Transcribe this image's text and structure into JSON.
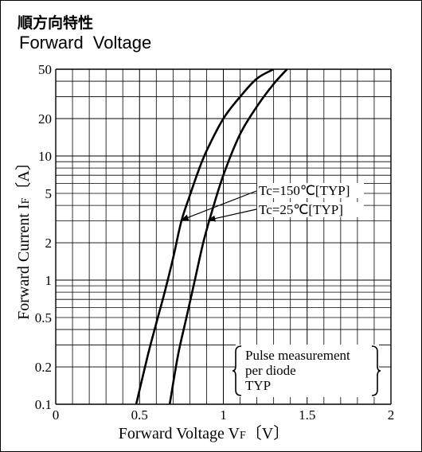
{
  "header": {
    "title_jp": "順方向特性",
    "title_en": "Forward  Voltage"
  },
  "chart_data": {
    "type": "line",
    "title": "Forward  Voltage",
    "xlabel": "Forward Voltage V",
    "xlabel_sub": "F",
    "xlabel_unit": "〔V〕",
    "ylabel": "Forward Current I",
    "ylabel_sub": "F",
    "ylabel_unit": "〔A〕",
    "xlim": [
      0,
      2
    ],
    "ylim": [
      0.1,
      50
    ],
    "yscale": "log",
    "grid": true,
    "x_ticks": [
      {
        "value": 0,
        "label": "0"
      },
      {
        "value": 0.5,
        "label": "0.5"
      },
      {
        "value": 1,
        "label": "1"
      },
      {
        "value": 1.5,
        "label": "1.5"
      },
      {
        "value": 2,
        "label": "2"
      }
    ],
    "y_ticks": [
      {
        "value": 0.1,
        "label": "0.1"
      },
      {
        "value": 0.2,
        "label": "0.2"
      },
      {
        "value": 0.5,
        "label": "0.5"
      },
      {
        "value": 1,
        "label": "1"
      },
      {
        "value": 2,
        "label": "2"
      },
      {
        "value": 5,
        "label": "5"
      },
      {
        "value": 10,
        "label": "10"
      },
      {
        "value": 20,
        "label": "20"
      },
      {
        "value": 50,
        "label": "50"
      }
    ],
    "series": [
      {
        "name": "Tc=150℃[TYP]",
        "x": [
          0.48,
          0.55,
          0.6,
          0.65,
          0.7,
          0.75,
          0.8,
          0.85,
          0.9,
          1.0,
          1.1,
          1.2,
          1.3
        ],
        "y": [
          0.1,
          0.25,
          0.45,
          0.8,
          1.5,
          3.0,
          4.8,
          7.5,
          11,
          20,
          30,
          42,
          50
        ]
      },
      {
        "name": "Tc=25℃[TYP]",
        "x": [
          0.68,
          0.73,
          0.78,
          0.83,
          0.88,
          0.93,
          1.0,
          1.1,
          1.2,
          1.3,
          1.38
        ],
        "y": [
          0.1,
          0.25,
          0.5,
          1.0,
          2.0,
          3.5,
          7.0,
          15,
          25,
          38,
          50
        ]
      }
    ],
    "annotations": [
      {
        "text": "Tc=150℃[TYP]",
        "series": 0,
        "point": [
          0.74,
          3.0
        ]
      },
      {
        "text": "Tc=25℃[TYP]",
        "series": 1,
        "point": [
          0.9,
          3.0
        ]
      }
    ],
    "note": {
      "lines": [
        "Pulse measurement",
        "per diode",
        "TYP"
      ]
    }
  }
}
